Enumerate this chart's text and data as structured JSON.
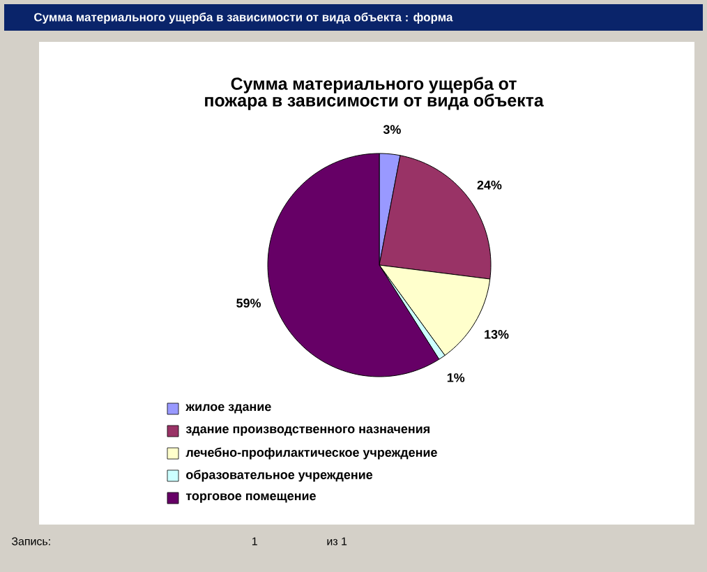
{
  "chart_data": {
    "type": "pie",
    "title": "Сумма материального ущерба от пожара в зависимости от вида объекта",
    "categories": [
      "жилое здание",
      "здание производственного назначения",
      "лечебно-профилактическое учреждение",
      "образовательное учреждение",
      "торговое помещение"
    ],
    "values": [
      3,
      24,
      13,
      1,
      59
    ],
    "value_labels": [
      "3%",
      "24%",
      "13%",
      "1%",
      "59%"
    ],
    "colors": [
      "#9999ff",
      "#993366",
      "#ffffcc",
      "#ccffff",
      "#660066"
    ],
    "legend": "bottom",
    "annotations": [
      "Сумма материального ущерба в зависимости от вида объекта : форма",
      "Запись:",
      "1",
      "из 1"
    ]
  }
}
